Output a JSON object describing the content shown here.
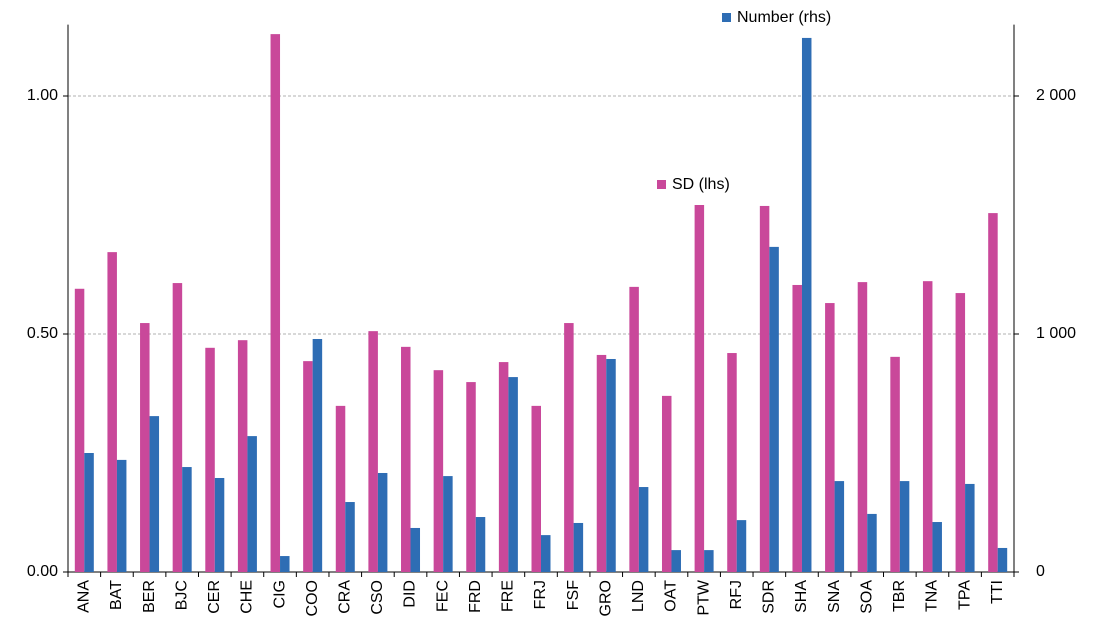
{
  "chart_data": {
    "type": "bar",
    "categories": [
      "ANA",
      "BAT",
      "BER",
      "BJC",
      "CER",
      "CHE",
      "CIG",
      "COO",
      "CRA",
      "CSO",
      "DID",
      "FEC",
      "FRD",
      "FRE",
      "FRJ",
      "FSF",
      "GRO",
      "LND",
      "OAT",
      "PTW",
      "RFJ",
      "SDR",
      "SHA",
      "SNA",
      "SOA",
      "TBR",
      "TNA",
      "TPA",
      "TTI"
    ],
    "series": [
      {
        "name": "SD (lhs)",
        "color": "#c9489a",
        "values": [
          0.595,
          0.672,
          0.523,
          0.607,
          0.471,
          0.487,
          1.13,
          0.443,
          0.349,
          0.506,
          0.473,
          0.424,
          0.399,
          0.441,
          0.349,
          0.523,
          0.456,
          0.599,
          0.37,
          0.771,
          0.46,
          0.769,
          0.603,
          0.565,
          0.609,
          0.452,
          0.611,
          0.586,
          0.754
        ]
      },
      {
        "name": "Number (rhs)",
        "color": "#2e6db4",
        "axis": "y2",
        "values": [
          500,
          471,
          655,
          441,
          395,
          571,
          67,
          979,
          294,
          416,
          185,
          403,
          231,
          819,
          155,
          206,
          895,
          357,
          92,
          92,
          218,
          1366,
          2244,
          382,
          244,
          382,
          210,
          370,
          101
        ]
      }
    ],
    "ylim": [
      0,
      1.15
    ],
    "yticks": [
      {
        "value": 0,
        "label": "0.00"
      },
      {
        "value": 0.5,
        "label": "0.50"
      },
      {
        "value": 1,
        "label": "1.00"
      }
    ],
    "y2lim": [
      0,
      2300
    ],
    "y2ticks": [
      0,
      {
        "value": 1000,
        "label": "1 000"
      },
      {
        "value": 2000,
        "label": "2 000"
      }
    ],
    "grid": true
  }
}
